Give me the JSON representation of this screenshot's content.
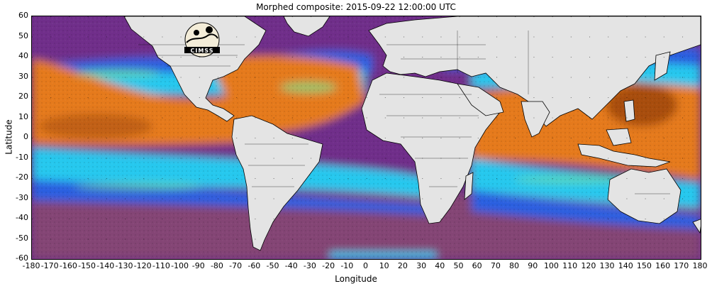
{
  "title": "Morphed composite: 2015-09-22 12:00:00 UTC",
  "axes": {
    "xlabel": "Longitude",
    "ylabel": "Latitude",
    "xticks": [
      "-180",
      "-170",
      "-160",
      "-150",
      "-140",
      "-130",
      "-120",
      "-110",
      "-100",
      "-90",
      "-80",
      "-70",
      "-60",
      "-50",
      "-40",
      "-30",
      "-20",
      "-10",
      "0",
      "10",
      "20",
      "30",
      "40",
      "50",
      "60",
      "70",
      "80",
      "90",
      "100",
      "110",
      "120",
      "130",
      "140",
      "150",
      "160",
      "170",
      "180"
    ],
    "yticks": [
      "60",
      "50",
      "40",
      "30",
      "20",
      "10",
      "0",
      "-10",
      "-20",
      "-30",
      "-40",
      "-50",
      "-60"
    ],
    "xlim": [
      -180,
      180
    ],
    "ylim": [
      -60,
      60
    ]
  },
  "logo": {
    "text": "CIMSS"
  },
  "colors": {
    "dry": "#6f2f8a",
    "mid_low": "#8a4a6e",
    "blue": "#2c5fe0",
    "cyan": "#28c8ee",
    "green": "#7fe08a",
    "orange": "#e57a1a",
    "dark_orange": "#a84d0e",
    "land": "#e4e4e4"
  }
}
